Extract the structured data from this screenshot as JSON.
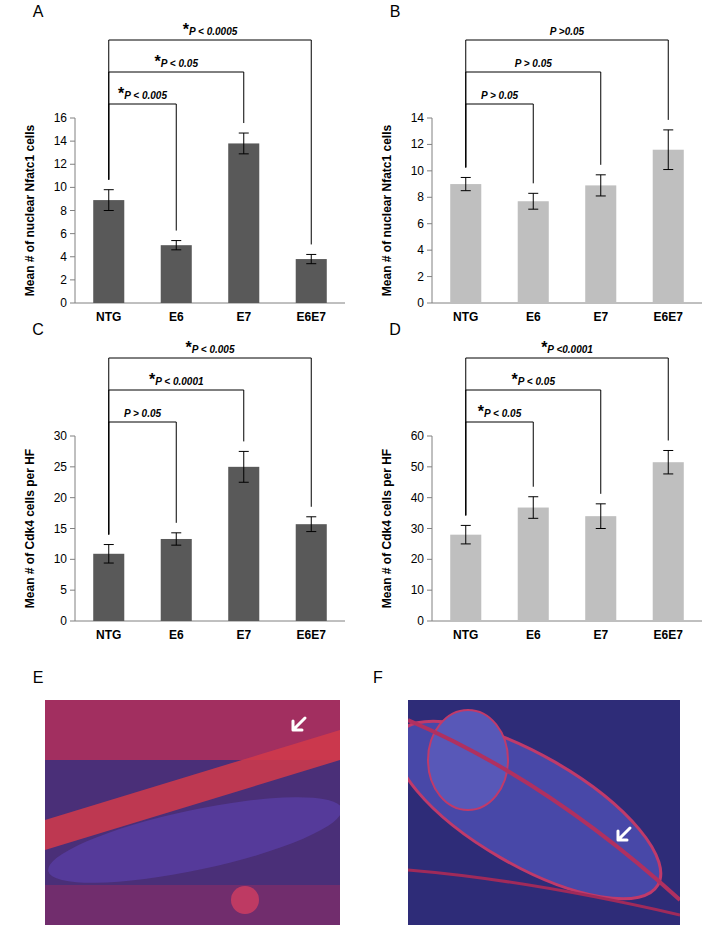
{
  "chart_data": [
    {
      "type": "bar",
      "title": "A",
      "y_label": "Mean # of nuclear Nfatc1 cells",
      "categories": [
        "NTG",
        "E6",
        "E7",
        "E6E7"
      ],
      "values": [
        8.9,
        5.0,
        13.8,
        3.8
      ],
      "errors": [
        0.9,
        0.4,
        0.9,
        0.4
      ],
      "color": "#595959",
      "ylim": [
        0,
        16
      ],
      "yticks": [
        0,
        2,
        4,
        6,
        8,
        10,
        12,
        14,
        16
      ],
      "annotations": [
        {
          "from": "NTG",
          "to": "E6",
          "text": "*P < 0.005"
        },
        {
          "from": "NTG",
          "to": "E7",
          "text": "*P < 0.05"
        },
        {
          "from": "NTG",
          "to": "E6E7",
          "text": "*P < 0.0005"
        }
      ]
    },
    {
      "type": "bar",
      "title": "B",
      "y_label": "Mean # of nuclear Nfatc1 cells",
      "categories": [
        "NTG",
        "E6",
        "E7",
        "E6E7"
      ],
      "values": [
        9.0,
        7.7,
        8.9,
        11.6
      ],
      "errors": [
        0.5,
        0.6,
        0.8,
        1.5
      ],
      "color": "#bfbfbf",
      "ylim": [
        0,
        14
      ],
      "yticks": [
        0,
        2,
        4,
        6,
        8,
        10,
        12,
        14
      ],
      "annotations": [
        {
          "from": "NTG",
          "to": "E6",
          "text": "P > 0.05"
        },
        {
          "from": "NTG",
          "to": "E7",
          "text": "P > 0.05"
        },
        {
          "from": "NTG",
          "to": "E6E7",
          "text": "P >0.05"
        }
      ]
    },
    {
      "type": "bar",
      "title": "C",
      "y_label": "Mean # of Cdk4 cells per HF",
      "categories": [
        "NTG",
        "E6",
        "E7",
        "E6E7"
      ],
      "values": [
        10.9,
        13.3,
        25.0,
        15.7
      ],
      "errors": [
        1.5,
        1.0,
        2.5,
        1.2
      ],
      "color": "#595959",
      "ylim": [
        0,
        30
      ],
      "yticks": [
        0,
        5,
        10,
        15,
        20,
        25,
        30
      ],
      "annotations": [
        {
          "from": "NTG",
          "to": "E6",
          "text": "P > 0.05"
        },
        {
          "from": "NTG",
          "to": "E7",
          "text": "*P < 0.0001"
        },
        {
          "from": "NTG",
          "to": "E6E7",
          "text": "*P < 0.005"
        }
      ]
    },
    {
      "type": "bar",
      "title": "D",
      "y_label": "Mean # of Cdk4 cells per HF",
      "categories": [
        "NTG",
        "E6",
        "E7",
        "E6E7"
      ],
      "values": [
        28.0,
        36.8,
        34.0,
        51.5
      ],
      "errors": [
        3.0,
        3.5,
        4.0,
        3.8
      ],
      "color": "#bfbfbf",
      "ylim": [
        0,
        60
      ],
      "yticks": [
        0,
        10,
        20,
        30,
        40,
        50,
        60
      ],
      "annotations": [
        {
          "from": "NTG",
          "to": "E6",
          "text": "*P < 0.05"
        },
        {
          "from": "NTG",
          "to": "E7",
          "text": "*P < 0.05"
        },
        {
          "from": "NTG",
          "to": "E6E7",
          "text": "*P <0.0001"
        }
      ]
    }
  ],
  "images": [
    {
      "label": "E"
    },
    {
      "label": "F"
    }
  ]
}
